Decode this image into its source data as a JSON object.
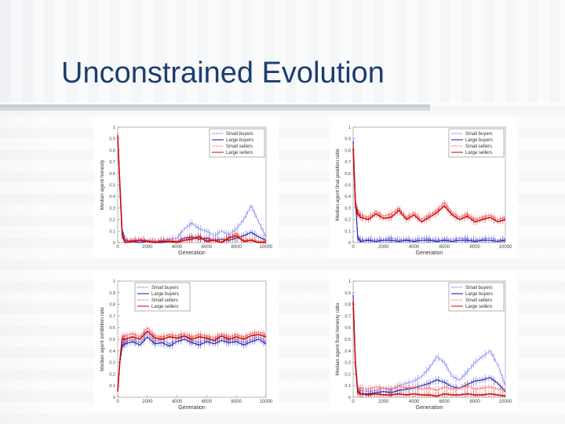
{
  "slide": {
    "title": "Unconstrained Evolution"
  },
  "chart_data": [
    {
      "type": "line",
      "ylabel": "Median agent honesty",
      "xlabel": "Generation",
      "xlim": [
        0,
        10000
      ],
      "ylim": [
        0,
        1
      ],
      "x_ticks": [
        0,
        2000,
        4000,
        6000,
        8000,
        10000
      ],
      "y_ticks": [
        0,
        0.1,
        0.2,
        0.3,
        0.4,
        0.5,
        0.6,
        0.7,
        0.8,
        0.9,
        1
      ],
      "legend_position": "top-right",
      "x": [
        0,
        150,
        300,
        500,
        1000,
        1500,
        2000,
        2500,
        3000,
        3500,
        4000,
        4500,
        5000,
        5500,
        6000,
        6500,
        7000,
        7500,
        8000,
        8500,
        9000,
        9500,
        10000
      ],
      "series": [
        {
          "name": "Small buyers",
          "color": "#6a6af0",
          "values": [
            0.92,
            0.55,
            0.12,
            0.02,
            0.02,
            0.01,
            0.02,
            0.01,
            0.02,
            0.03,
            0.04,
            0.12,
            0.17,
            0.12,
            0.1,
            0.06,
            0.1,
            0.07,
            0.12,
            0.2,
            0.32,
            0.18,
            0.05
          ]
        },
        {
          "name": "Large buyers",
          "color": "#1010b0",
          "values": [
            0.9,
            0.5,
            0.1,
            0.02,
            0.01,
            0.0,
            0.01,
            0.0,
            0.0,
            0.01,
            0.01,
            0.04,
            0.05,
            0.03,
            0.04,
            0.02,
            0.03,
            0.02,
            0.04,
            0.06,
            0.09,
            0.05,
            0.02
          ]
        },
        {
          "name": "Small sellers",
          "color": "#f06060",
          "values": [
            0.95,
            0.5,
            0.08,
            0.01,
            0.02,
            0.03,
            0.02,
            0.01,
            0.02,
            0.02,
            0.01,
            0.03,
            0.04,
            0.06,
            0.02,
            0.03,
            0.01,
            0.05,
            0.08,
            0.02,
            0.03,
            0.01,
            0.01
          ]
        },
        {
          "name": "Large sellers",
          "color": "#cc0000",
          "values": [
            0.93,
            0.48,
            0.06,
            0.0,
            0.01,
            0.02,
            0.01,
            0.0,
            0.01,
            0.01,
            0.0,
            0.02,
            0.03,
            0.05,
            0.01,
            0.02,
            0.0,
            0.04,
            0.06,
            0.01,
            0.02,
            0.0,
            0.0
          ]
        }
      ]
    },
    {
      "type": "line",
      "ylabel": "Median agent final position ratio",
      "xlabel": "Generation",
      "xlim": [
        0,
        10000
      ],
      "ylim": [
        0,
        1
      ],
      "x_ticks": [
        0,
        2000,
        4000,
        6000,
        8000,
        10000
      ],
      "y_ticks": [
        0,
        0.1,
        0.2,
        0.3,
        0.4,
        0.5,
        0.6,
        0.7,
        0.8,
        0.9,
        1
      ],
      "legend_position": "top-right",
      "x": [
        0,
        150,
        300,
        500,
        1000,
        1500,
        2000,
        2500,
        3000,
        3500,
        4000,
        4500,
        5000,
        5500,
        6000,
        6500,
        7000,
        7500,
        8000,
        8500,
        9000,
        9500,
        10000
      ],
      "series": [
        {
          "name": "Small buyers",
          "color": "#6a6af0",
          "values": [
            0.9,
            0.4,
            0.05,
            0.02,
            0.03,
            0.02,
            0.03,
            0.04,
            0.02,
            0.03,
            0.02,
            0.04,
            0.03,
            0.02,
            0.03,
            0.02,
            0.04,
            0.03,
            0.02,
            0.03,
            0.04,
            0.02,
            0.03
          ]
        },
        {
          "name": "Large buyers",
          "color": "#1010b0",
          "values": [
            0.88,
            0.38,
            0.04,
            0.01,
            0.02,
            0.01,
            0.02,
            0.02,
            0.01,
            0.02,
            0.01,
            0.02,
            0.02,
            0.01,
            0.02,
            0.01,
            0.02,
            0.02,
            0.01,
            0.02,
            0.02,
            0.01,
            0.02
          ]
        },
        {
          "name": "Small sellers",
          "color": "#f06060",
          "values": [
            0.85,
            0.35,
            0.28,
            0.24,
            0.22,
            0.27,
            0.23,
            0.25,
            0.3,
            0.22,
            0.26,
            0.2,
            0.24,
            0.28,
            0.35,
            0.26,
            0.22,
            0.25,
            0.2,
            0.22,
            0.24,
            0.2,
            0.22
          ]
        },
        {
          "name": "Large sellers",
          "color": "#cc0000",
          "values": [
            0.82,
            0.32,
            0.25,
            0.22,
            0.2,
            0.25,
            0.21,
            0.22,
            0.28,
            0.2,
            0.24,
            0.18,
            0.22,
            0.26,
            0.32,
            0.24,
            0.2,
            0.23,
            0.18,
            0.2,
            0.22,
            0.18,
            0.2
          ]
        }
      ]
    },
    {
      "type": "line",
      "ylabel": "Median agent exhibition rate",
      "xlabel": "Generation",
      "xlim": [
        0,
        10000
      ],
      "ylim": [
        0,
        1
      ],
      "x_ticks": [
        0,
        2000,
        4000,
        6000,
        8000,
        10000
      ],
      "y_ticks": [
        0,
        0.1,
        0.2,
        0.3,
        0.4,
        0.5,
        0.6,
        0.7,
        0.8,
        0.9,
        1
      ],
      "legend_position": "top-left",
      "x": [
        0,
        150,
        300,
        500,
        1000,
        1500,
        2000,
        2500,
        3000,
        3500,
        4000,
        4500,
        5000,
        5500,
        6000,
        6500,
        7000,
        7500,
        8000,
        8500,
        9000,
        9500,
        10000
      ],
      "series": [
        {
          "name": "Small buyers",
          "color": "#6a6af0",
          "values": [
            0.05,
            0.3,
            0.46,
            0.48,
            0.5,
            0.47,
            0.55,
            0.48,
            0.5,
            0.46,
            0.5,
            0.52,
            0.49,
            0.47,
            0.5,
            0.48,
            0.51,
            0.49,
            0.5,
            0.47,
            0.5,
            0.52,
            0.48
          ]
        },
        {
          "name": "Large buyers",
          "color": "#1010b0",
          "values": [
            0.05,
            0.3,
            0.44,
            0.46,
            0.48,
            0.45,
            0.52,
            0.46,
            0.47,
            0.44,
            0.48,
            0.5,
            0.47,
            0.45,
            0.48,
            0.46,
            0.49,
            0.47,
            0.48,
            0.45,
            0.48,
            0.5,
            0.46
          ]
        },
        {
          "name": "Small sellers",
          "color": "#f06060",
          "values": [
            0.05,
            0.32,
            0.52,
            0.53,
            0.55,
            0.52,
            0.6,
            0.53,
            0.52,
            0.54,
            0.53,
            0.55,
            0.52,
            0.54,
            0.53,
            0.51,
            0.55,
            0.52,
            0.54,
            0.52,
            0.55,
            0.56,
            0.54
          ]
        },
        {
          "name": "Large sellers",
          "color": "#cc0000",
          "values": [
            0.05,
            0.32,
            0.5,
            0.5,
            0.52,
            0.5,
            0.57,
            0.51,
            0.5,
            0.52,
            0.51,
            0.53,
            0.5,
            0.52,
            0.51,
            0.49,
            0.53,
            0.5,
            0.52,
            0.5,
            0.53,
            0.54,
            0.52
          ]
        }
      ]
    },
    {
      "type": "line",
      "ylabel": "Median agent final honesty ratio",
      "xlabel": "Generation",
      "xlim": [
        0,
        10000
      ],
      "ylim": [
        0,
        1
      ],
      "x_ticks": [
        0,
        2000,
        4000,
        6000,
        8000,
        10000
      ],
      "y_ticks": [
        0,
        0.1,
        0.2,
        0.3,
        0.4,
        0.5,
        0.6,
        0.7,
        0.8,
        0.9,
        1
      ],
      "legend_position": "top-right",
      "x": [
        0,
        150,
        300,
        500,
        1000,
        1500,
        2000,
        2500,
        3000,
        3500,
        4000,
        4500,
        5000,
        5500,
        6000,
        6500,
        7000,
        7500,
        8000,
        8500,
        9000,
        9500,
        10000
      ],
      "series": [
        {
          "name": "Small buyers",
          "color": "#6a6af0",
          "values": [
            0.9,
            0.35,
            0.08,
            0.06,
            0.05,
            0.06,
            0.08,
            0.06,
            0.1,
            0.12,
            0.14,
            0.18,
            0.25,
            0.35,
            0.3,
            0.18,
            0.15,
            0.22,
            0.3,
            0.35,
            0.4,
            0.28,
            0.1
          ]
        },
        {
          "name": "Large buyers",
          "color": "#1010b0",
          "values": [
            0.88,
            0.3,
            0.06,
            0.03,
            0.03,
            0.04,
            0.05,
            0.04,
            0.06,
            0.07,
            0.08,
            0.1,
            0.12,
            0.15,
            0.13,
            0.09,
            0.08,
            0.11,
            0.14,
            0.15,
            0.17,
            0.12,
            0.05
          ]
        },
        {
          "name": "Small sellers",
          "color": "#f06060",
          "values": [
            0.85,
            0.3,
            0.07,
            0.08,
            0.07,
            0.09,
            0.08,
            0.07,
            0.1,
            0.08,
            0.09,
            0.07,
            0.08,
            0.06,
            0.09,
            0.07,
            0.08,
            0.1,
            0.07,
            0.08,
            0.09,
            0.07,
            0.06
          ]
        },
        {
          "name": "Large sellers",
          "color": "#cc0000",
          "values": [
            0.82,
            0.28,
            0.04,
            0.03,
            0.02,
            0.03,
            0.02,
            0.02,
            0.03,
            0.02,
            0.03,
            0.02,
            0.02,
            0.01,
            0.03,
            0.02,
            0.02,
            0.03,
            0.02,
            0.02,
            0.03,
            0.02,
            0.01
          ]
        }
      ]
    }
  ]
}
